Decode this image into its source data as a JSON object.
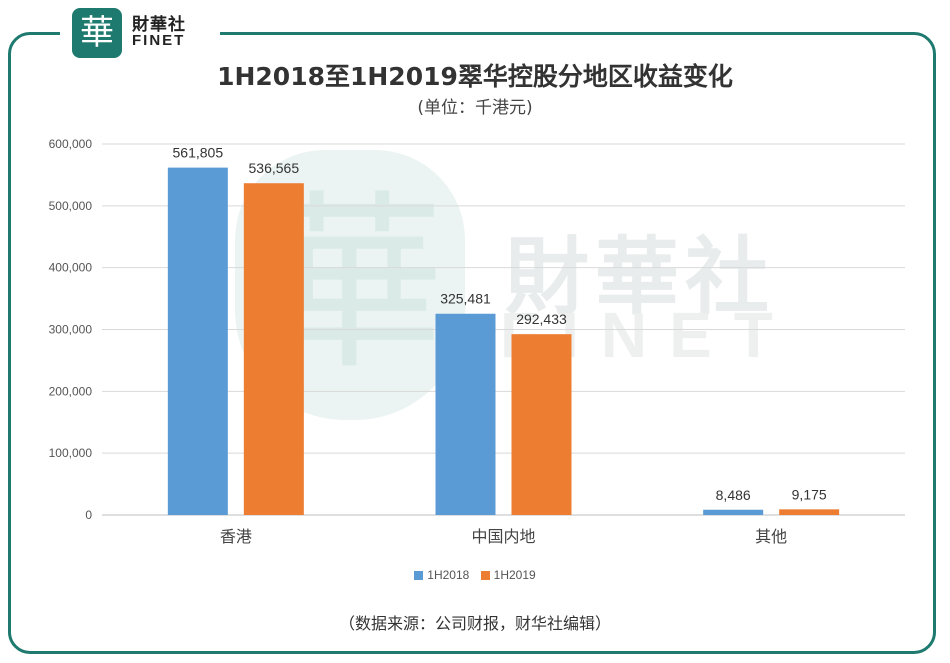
{
  "brand": {
    "badge": "華",
    "name_cn": "財華社",
    "name_en": "FINET"
  },
  "watermark": {
    "badge": "華",
    "name_cn": "財華社",
    "name_en": "FINET"
  },
  "chart_data": {
    "type": "bar",
    "title": "1H2018至1H2019翠华控股分地区收益变化",
    "subtitle": "(单位：千港元)",
    "categories": [
      "香港",
      "中国内地",
      "其他"
    ],
    "series": [
      {
        "name": "1H2018",
        "color": "#5b9bd5",
        "values": [
          561805,
          325481,
          8486
        ]
      },
      {
        "name": "1H2019",
        "color": "#ed7d31",
        "values": [
          536565,
          292433,
          9175
        ]
      }
    ],
    "data_labels": [
      [
        "561,805",
        "325,481",
        "8,486"
      ],
      [
        "536,565",
        "292,433",
        "9,175"
      ]
    ],
    "y_ticks": [
      "0",
      "100,000",
      "200,000",
      "300,000",
      "400,000",
      "500,000",
      "600,000"
    ],
    "ylim": [
      0,
      600000
    ],
    "grid": true,
    "legend_position": "bottom"
  },
  "source": "（数据来源：公司财报，财华社编辑）"
}
